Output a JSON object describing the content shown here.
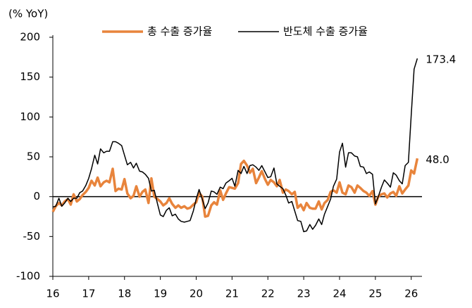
{
  "chart_data": {
    "type": "line",
    "y_label": "(% YoY)",
    "x": [
      16.0,
      16.08,
      16.17,
      16.25,
      16.33,
      16.42,
      16.5,
      16.58,
      16.67,
      16.75,
      16.83,
      16.92,
      17.0,
      17.08,
      17.17,
      17.25,
      17.33,
      17.42,
      17.5,
      17.58,
      17.67,
      17.75,
      17.83,
      17.92,
      18.0,
      18.08,
      18.17,
      18.25,
      18.33,
      18.42,
      18.5,
      18.58,
      18.67,
      18.75,
      18.83,
      18.92,
      19.0,
      19.08,
      19.17,
      19.25,
      19.33,
      19.42,
      19.5,
      19.58,
      19.67,
      19.75,
      19.83,
      19.92,
      20.0,
      20.08,
      20.17,
      20.25,
      20.33,
      20.42,
      20.5,
      20.58,
      20.67,
      20.75,
      20.83,
      20.92,
      21.0,
      21.08,
      21.17,
      21.25,
      21.33,
      21.42,
      21.5,
      21.58,
      21.67,
      21.75,
      21.83,
      21.92,
      22.0,
      22.08,
      22.17,
      22.25,
      22.33,
      22.42,
      22.5,
      22.58,
      22.67,
      22.75,
      22.83,
      22.92,
      23.0,
      23.08,
      23.17,
      23.25,
      23.33,
      23.42,
      23.5,
      23.58,
      23.67,
      23.75,
      23.83,
      23.92,
      24.0,
      24.08,
      24.17,
      24.25,
      24.33,
      24.42,
      24.5,
      24.58,
      24.67,
      24.75,
      24.83,
      24.92,
      25.0,
      25.08,
      25.17,
      25.25,
      25.33,
      25.42,
      25.5,
      25.58,
      25.67,
      25.75,
      25.83,
      25.92,
      26.0,
      26.08,
      26.17
    ],
    "series": [
      {
        "name": "총 수출 증가율",
        "color": "#e8843c",
        "width": 3.5,
        "values": [
          -19,
          -12,
          -8,
          -11,
          -6,
          -3,
          -10,
          3,
          -6,
          -3,
          2,
          6,
          11,
          20,
          14,
          24,
          13,
          18,
          20,
          18,
          35,
          7,
          10,
          9,
          22,
          4,
          -2,
          1,
          13,
          0,
          6,
          9,
          -8,
          23,
          0,
          -3,
          -6,
          -11,
          -8,
          -2,
          -9,
          -14,
          -11,
          -14,
          -12,
          -15,
          -14,
          -10,
          -7,
          5,
          0,
          -25,
          -24,
          -11,
          -7,
          -10,
          8,
          -4,
          4,
          12,
          11,
          10,
          17,
          41,
          45,
          39,
          30,
          35,
          17,
          24,
          32,
          22,
          15,
          21,
          18,
          13,
          21,
          5,
          9,
          7,
          3,
          6,
          -14,
          -10,
          -17,
          -8,
          -14,
          -15,
          -15,
          -6,
          -16,
          -8,
          -4,
          6,
          8,
          5,
          18,
          5,
          3,
          14,
          12,
          5,
          14,
          11,
          7,
          5,
          1,
          7,
          -10,
          0,
          3,
          4,
          -1,
          4,
          6,
          1,
          13,
          4,
          9,
          14,
          33,
          29,
          48.0
        ],
        "value_labels": [
          null,
          null,
          null,
          null,
          null,
          null,
          null,
          null,
          null,
          null,
          null,
          null,
          null,
          null,
          null,
          null,
          null,
          null,
          null,
          null,
          null,
          null,
          null,
          null,
          null,
          null,
          null,
          null,
          null,
          null,
          null,
          null,
          null,
          null,
          null,
          null,
          null,
          null,
          null,
          null,
          null,
          null,
          null,
          null,
          null,
          null,
          null,
          null,
          null,
          null,
          null,
          null,
          null,
          null,
          null,
          null,
          null,
          null,
          null,
          null,
          null,
          null,
          null,
          null,
          null,
          null,
          null,
          null,
          null,
          null,
          null,
          null,
          null,
          null,
          null,
          null,
          null,
          null,
          null,
          null,
          null,
          null,
          null,
          null,
          null,
          null,
          null,
          null,
          null,
          null,
          null,
          null,
          null,
          null,
          null,
          null,
          null,
          null,
          null,
          null,
          null,
          null,
          null,
          null,
          null,
          null,
          null,
          null,
          null,
          null,
          null,
          null,
          null,
          null,
          null,
          null,
          null,
          null,
          null,
          null,
          null,
          null,
          "48.0"
        ]
      },
      {
        "name": "반도체 수출 증가율",
        "color": "#000000",
        "width": 1.5,
        "values": [
          -13,
          -12,
          -2,
          -12,
          -8,
          -2,
          -6,
          -2,
          -2,
          5,
          7,
          14,
          23,
          35,
          52,
          41,
          60,
          55,
          57,
          57,
          69,
          69,
          67,
          64,
          52,
          40,
          43,
          36,
          42,
          32,
          31,
          28,
          23,
          7,
          8,
          -9,
          -23,
          -25,
          -17,
          -14,
          -24,
          -22,
          -28,
          -31,
          -32,
          -31,
          -30,
          -18,
          -3,
          9,
          -3,
          -15,
          -8,
          7,
          6,
          3,
          12,
          10,
          17,
          20,
          23,
          13,
          33,
          29,
          38,
          29,
          39,
          40,
          37,
          33,
          39,
          31,
          24,
          25,
          36,
          16,
          13,
          10,
          2,
          -8,
          -6,
          -18,
          -30,
          -31,
          -44,
          -43,
          -35,
          -41,
          -36,
          -28,
          -35,
          -22,
          -12,
          -3,
          13,
          22,
          56,
          67,
          37,
          55,
          55,
          51,
          50,
          38,
          37,
          29,
          31,
          28,
          -9,
          0,
          12,
          21,
          17,
          12,
          30,
          27,
          20,
          16,
          39,
          43,
          102,
          160,
          173.4
        ],
        "value_labels": [
          null,
          null,
          null,
          null,
          null,
          null,
          null,
          null,
          null,
          null,
          null,
          null,
          null,
          null,
          null,
          null,
          null,
          null,
          null,
          null,
          null,
          null,
          null,
          null,
          null,
          null,
          null,
          null,
          null,
          null,
          null,
          null,
          null,
          null,
          null,
          null,
          null,
          null,
          null,
          null,
          null,
          null,
          null,
          null,
          null,
          null,
          null,
          null,
          null,
          null,
          null,
          null,
          null,
          null,
          null,
          null,
          null,
          null,
          null,
          null,
          null,
          null,
          null,
          null,
          null,
          null,
          null,
          null,
          null,
          null,
          null,
          null,
          null,
          null,
          null,
          null,
          null,
          null,
          null,
          null,
          null,
          null,
          null,
          null,
          null,
          null,
          null,
          null,
          null,
          null,
          null,
          null,
          null,
          null,
          null,
          null,
          null,
          null,
          null,
          null,
          null,
          null,
          null,
          null,
          null,
          null,
          null,
          null,
          null,
          null,
          null,
          null,
          null,
          null,
          null,
          null,
          null,
          null,
          null,
          null,
          null,
          null,
          "173.4"
        ]
      }
    ],
    "xlim": [
      16,
      26.3
    ],
    "xticks": [
      16,
      17,
      18,
      19,
      20,
      21,
      22,
      23,
      24,
      25,
      26
    ],
    "ylim": [
      -100,
      200
    ],
    "yticks": [
      -100,
      -50,
      0,
      50,
      100,
      150,
      200
    ],
    "grid": false,
    "legend": "top"
  }
}
